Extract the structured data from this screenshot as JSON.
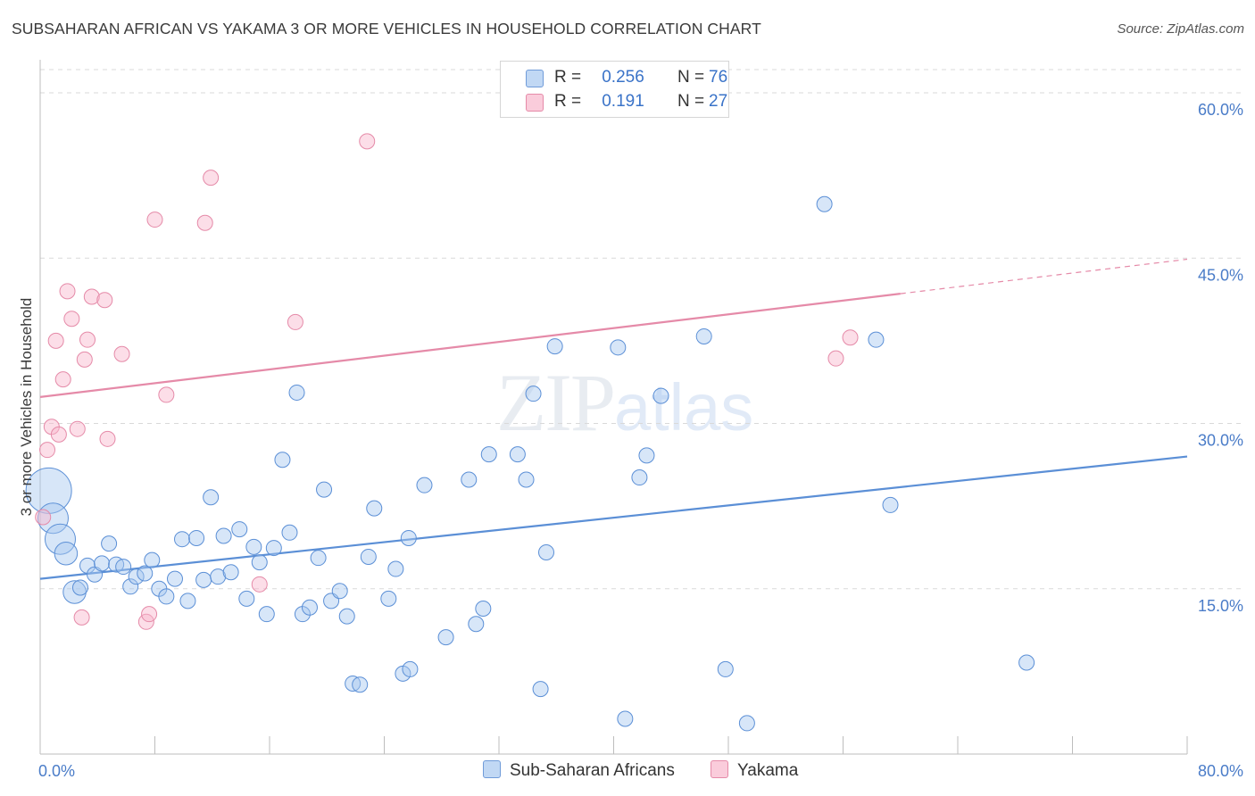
{
  "title": "SUBSAHARAN AFRICAN VS YAKAMA 3 OR MORE VEHICLES IN HOUSEHOLD CORRELATION CHART",
  "source": "Source: ZipAtlas.com",
  "watermark": {
    "zip": "ZIP",
    "atlas": "atlas"
  },
  "legend": {
    "rows": [
      {
        "r_label": "R =",
        "r_value": "0.256",
        "n_label": "N =",
        "n_value": "76",
        "color": "#a7c7f0"
      },
      {
        "r_label": "R =",
        "r_value": "0.191",
        "n_label": "N =",
        "n_value": "27",
        "color": "#f8b6cc"
      }
    ]
  },
  "bottom_legend": [
    {
      "label": "Sub-Saharan Africans",
      "color": "#a7c7f0"
    },
    {
      "label": "Yakama",
      "color": "#f8b6cc"
    }
  ],
  "chart_data": {
    "type": "scatter",
    "title": "SUBSAHARAN AFRICAN VS YAKAMA 3 OR MORE VEHICLES IN HOUSEHOLD CORRELATION CHART",
    "xlabel": "",
    "ylabel": "3 or more Vehicles in Household",
    "xlim": [
      0,
      80
    ],
    "ylim": [
      0,
      63
    ],
    "x_tick_labels": [
      "0.0%",
      "80.0%"
    ],
    "y_ticks": [
      15,
      30,
      45,
      60
    ],
    "y_tick_labels": [
      "15.0%",
      "30.0%",
      "45.0%",
      "60.0%"
    ],
    "grid": true,
    "legend_position": "top-center",
    "series": [
      {
        "name": "Sub-Saharan Africans",
        "color": "#5b8fd6",
        "trend": {
          "x": [
            0,
            80
          ],
          "y": [
            15.9,
            27.0
          ],
          "dashed_after": null
        },
        "points": [
          {
            "x": 0.6,
            "y": 23.9,
            "s": 3
          },
          {
            "x": 0.9,
            "y": 21.4,
            "s": 2
          },
          {
            "x": 1.4,
            "y": 19.5,
            "s": 2
          },
          {
            "x": 1.8,
            "y": 18.2,
            "s": 1.5
          },
          {
            "x": 2.4,
            "y": 14.7,
            "s": 1.5
          },
          {
            "x": 2.8,
            "y": 15.1,
            "s": 1
          },
          {
            "x": 3.3,
            "y": 17.1,
            "s": 1
          },
          {
            "x": 3.8,
            "y": 16.3,
            "s": 1
          },
          {
            "x": 4.3,
            "y": 17.3,
            "s": 1
          },
          {
            "x": 4.8,
            "y": 19.1,
            "s": 1
          },
          {
            "x": 5.3,
            "y": 17.2,
            "s": 1
          },
          {
            "x": 5.8,
            "y": 17.0,
            "s": 1
          },
          {
            "x": 6.3,
            "y": 15.2,
            "s": 1
          },
          {
            "x": 6.7,
            "y": 16.1,
            "s": 1
          },
          {
            "x": 7.3,
            "y": 16.4,
            "s": 1
          },
          {
            "x": 7.8,
            "y": 17.6,
            "s": 1
          },
          {
            "x": 8.3,
            "y": 15.0,
            "s": 1
          },
          {
            "x": 8.8,
            "y": 14.3,
            "s": 1
          },
          {
            "x": 9.4,
            "y": 15.9,
            "s": 1
          },
          {
            "x": 9.9,
            "y": 19.5,
            "s": 1
          },
          {
            "x": 10.3,
            "y": 13.9,
            "s": 1
          },
          {
            "x": 10.9,
            "y": 19.6,
            "s": 1
          },
          {
            "x": 11.4,
            "y": 15.8,
            "s": 1
          },
          {
            "x": 11.9,
            "y": 23.3,
            "s": 1
          },
          {
            "x": 12.4,
            "y": 16.1,
            "s": 1
          },
          {
            "x": 12.8,
            "y": 19.8,
            "s": 1
          },
          {
            "x": 13.3,
            "y": 16.5,
            "s": 1
          },
          {
            "x": 13.9,
            "y": 20.4,
            "s": 1
          },
          {
            "x": 14.4,
            "y": 14.1,
            "s": 1
          },
          {
            "x": 14.9,
            "y": 18.8,
            "s": 1
          },
          {
            "x": 15.3,
            "y": 17.4,
            "s": 1
          },
          {
            "x": 15.8,
            "y": 12.7,
            "s": 1
          },
          {
            "x": 16.3,
            "y": 18.7,
            "s": 1
          },
          {
            "x": 16.9,
            "y": 26.7,
            "s": 1
          },
          {
            "x": 17.4,
            "y": 20.1,
            "s": 1
          },
          {
            "x": 17.9,
            "y": 32.8,
            "s": 1
          },
          {
            "x": 18.3,
            "y": 12.7,
            "s": 1
          },
          {
            "x": 18.8,
            "y": 13.3,
            "s": 1
          },
          {
            "x": 19.4,
            "y": 17.8,
            "s": 1
          },
          {
            "x": 19.8,
            "y": 24.0,
            "s": 1
          },
          {
            "x": 20.3,
            "y": 13.9,
            "s": 1
          },
          {
            "x": 20.9,
            "y": 14.8,
            "s": 1
          },
          {
            "x": 21.4,
            "y": 12.5,
            "s": 1
          },
          {
            "x": 21.8,
            "y": 6.4,
            "s": 1
          },
          {
            "x": 22.3,
            "y": 6.3,
            "s": 1
          },
          {
            "x": 22.9,
            "y": 17.9,
            "s": 1
          },
          {
            "x": 23.3,
            "y": 22.3,
            "s": 1
          },
          {
            "x": 24.3,
            "y": 14.1,
            "s": 1
          },
          {
            "x": 24.8,
            "y": 16.8,
            "s": 1
          },
          {
            "x": 25.3,
            "y": 7.3,
            "s": 1
          },
          {
            "x": 25.8,
            "y": 7.7,
            "s": 1
          },
          {
            "x": 25.7,
            "y": 19.6,
            "s": 1
          },
          {
            "x": 26.8,
            "y": 24.4,
            "s": 1
          },
          {
            "x": 28.3,
            "y": 10.6,
            "s": 1
          },
          {
            "x": 29.9,
            "y": 24.9,
            "s": 1
          },
          {
            "x": 30.4,
            "y": 11.8,
            "s": 1
          },
          {
            "x": 30.9,
            "y": 13.2,
            "s": 1
          },
          {
            "x": 31.3,
            "y": 27.2,
            "s": 1
          },
          {
            "x": 33.3,
            "y": 27.2,
            "s": 1
          },
          {
            "x": 33.9,
            "y": 24.9,
            "s": 1
          },
          {
            "x": 34.4,
            "y": 32.7,
            "s": 1
          },
          {
            "x": 34.9,
            "y": 5.9,
            "s": 1
          },
          {
            "x": 35.3,
            "y": 18.3,
            "s": 1
          },
          {
            "x": 35.9,
            "y": 37.0,
            "s": 1
          },
          {
            "x": 40.3,
            "y": 36.9,
            "s": 1
          },
          {
            "x": 40.8,
            "y": 3.2,
            "s": 1
          },
          {
            "x": 41.8,
            "y": 25.1,
            "s": 1
          },
          {
            "x": 42.3,
            "y": 27.1,
            "s": 1
          },
          {
            "x": 43.3,
            "y": 32.5,
            "s": 1
          },
          {
            "x": 46.3,
            "y": 37.9,
            "s": 1
          },
          {
            "x": 47.8,
            "y": 7.7,
            "s": 1
          },
          {
            "x": 49.3,
            "y": 2.8,
            "s": 1
          },
          {
            "x": 54.7,
            "y": 49.9,
            "s": 1
          },
          {
            "x": 58.3,
            "y": 37.6,
            "s": 1
          },
          {
            "x": 59.3,
            "y": 22.6,
            "s": 1
          },
          {
            "x": 68.8,
            "y": 8.3,
            "s": 1
          }
        ]
      },
      {
        "name": "Yakama",
        "color": "#e58aa8",
        "trend": {
          "x": [
            0,
            80
          ],
          "y": [
            32.4,
            44.9
          ],
          "dashed_after": 60.0
        },
        "points": [
          {
            "x": 0.2,
            "y": 21.5,
            "s": 1
          },
          {
            "x": 0.5,
            "y": 27.6,
            "s": 1
          },
          {
            "x": 0.8,
            "y": 29.7,
            "s": 1
          },
          {
            "x": 1.1,
            "y": 37.5,
            "s": 1
          },
          {
            "x": 1.3,
            "y": 29.0,
            "s": 1
          },
          {
            "x": 1.6,
            "y": 34.0,
            "s": 1
          },
          {
            "x": 1.9,
            "y": 42.0,
            "s": 1
          },
          {
            "x": 2.2,
            "y": 39.5,
            "s": 1
          },
          {
            "x": 2.6,
            "y": 29.5,
            "s": 1
          },
          {
            "x": 2.9,
            "y": 12.4,
            "s": 1
          },
          {
            "x": 3.1,
            "y": 35.8,
            "s": 1
          },
          {
            "x": 3.3,
            "y": 37.6,
            "s": 1
          },
          {
            "x": 3.6,
            "y": 41.5,
            "s": 1
          },
          {
            "x": 4.5,
            "y": 41.2,
            "s": 1
          },
          {
            "x": 4.7,
            "y": 28.6,
            "s": 1
          },
          {
            "x": 5.7,
            "y": 36.3,
            "s": 1
          },
          {
            "x": 7.4,
            "y": 12.0,
            "s": 1
          },
          {
            "x": 7.6,
            "y": 12.7,
            "s": 1
          },
          {
            "x": 8.0,
            "y": 48.5,
            "s": 1
          },
          {
            "x": 8.8,
            "y": 32.6,
            "s": 1
          },
          {
            "x": 11.5,
            "y": 48.2,
            "s": 1
          },
          {
            "x": 11.9,
            "y": 52.3,
            "s": 1
          },
          {
            "x": 15.3,
            "y": 15.4,
            "s": 1
          },
          {
            "x": 17.8,
            "y": 39.2,
            "s": 1
          },
          {
            "x": 22.8,
            "y": 55.6,
            "s": 1
          },
          {
            "x": 55.5,
            "y": 35.9,
            "s": 1
          },
          {
            "x": 56.5,
            "y": 37.8,
            "s": 1
          }
        ]
      }
    ]
  }
}
